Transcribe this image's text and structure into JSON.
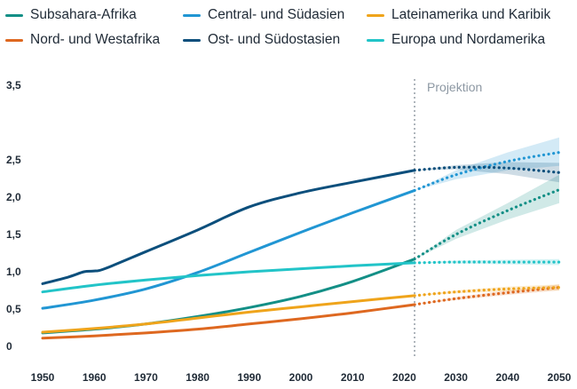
{
  "chart_data": {
    "type": "line",
    "title": "",
    "xlabel": "",
    "ylabel": "",
    "xlim": [
      1950,
      2050
    ],
    "ylim": [
      0,
      3.5
    ],
    "grid": false,
    "legend_position": "top",
    "projection_start": 2022,
    "projection_label": "Projektion",
    "x_ticks": [
      "1950",
      "1960",
      "1970",
      "1980",
      "1990",
      "2000",
      "2010",
      "2020",
      "2030",
      "2040",
      "2050"
    ],
    "y_ticks": [
      "0",
      "0,5",
      "1,0",
      "1,5",
      "2,0",
      "2,5",
      "3,5"
    ],
    "y_tick_values": [
      0,
      0.5,
      1.0,
      1.5,
      2.0,
      2.5,
      3.5
    ],
    "series": [
      {
        "name": "Subsahara-Afrika",
        "color": "#138f86",
        "x": [
          1950,
          1960,
          1970,
          1980,
          1990,
          2000,
          2010,
          2022
        ],
        "values": [
          0.18,
          0.23,
          0.3,
          0.4,
          0.52,
          0.67,
          0.87,
          1.17
        ],
        "projection_x": [
          2022,
          2030,
          2040,
          2050
        ],
        "projection_values": [
          1.17,
          1.5,
          1.82,
          2.1
        ],
        "band_lower": [
          1.17,
          1.44,
          1.7,
          1.92
        ],
        "band_upper": [
          1.17,
          1.56,
          1.92,
          2.3
        ]
      },
      {
        "name": "Nord- und Westafrika",
        "color": "#de6820",
        "x": [
          1950,
          1960,
          1970,
          1980,
          1990,
          2000,
          2010,
          2022
        ],
        "values": [
          0.11,
          0.14,
          0.18,
          0.23,
          0.3,
          0.37,
          0.45,
          0.56
        ],
        "projection_x": [
          2022,
          2030,
          2040,
          2050
        ],
        "projection_values": [
          0.56,
          0.64,
          0.72,
          0.79
        ],
        "band_lower": [
          0.56,
          0.62,
          0.69,
          0.75
        ],
        "band_upper": [
          0.56,
          0.66,
          0.75,
          0.83
        ]
      },
      {
        "name": "Central- und Südasien",
        "color": "#2196d3",
        "x": [
          1950,
          1960,
          1970,
          1980,
          1990,
          2000,
          2010,
          2022
        ],
        "values": [
          0.51,
          0.62,
          0.77,
          0.99,
          1.26,
          1.53,
          1.79,
          2.09
        ],
        "projection_x": [
          2022,
          2030,
          2040,
          2050
        ],
        "projection_values": [
          2.09,
          2.3,
          2.48,
          2.6
        ],
        "band_lower": [
          2.09,
          2.24,
          2.36,
          2.42
        ],
        "band_upper": [
          2.09,
          2.36,
          2.6,
          2.8
        ]
      },
      {
        "name": "Ost- und Südostasien",
        "color": "#0c4f7c",
        "x": [
          1950,
          1955,
          1958,
          1960,
          1962,
          1970,
          1980,
          1990,
          2000,
          2010,
          2022
        ],
        "values": [
          0.84,
          0.93,
          1.0,
          1.01,
          1.04,
          1.27,
          1.56,
          1.87,
          2.06,
          2.2,
          2.36
        ],
        "projection_x": [
          2022,
          2030,
          2040,
          2050
        ],
        "projection_values": [
          2.36,
          2.4,
          2.39,
          2.33
        ],
        "band_lower": [
          2.36,
          2.37,
          2.31,
          2.2
        ],
        "band_upper": [
          2.36,
          2.43,
          2.47,
          2.46
        ]
      },
      {
        "name": "Lateinamerika und Karibik",
        "color": "#efa41b",
        "x": [
          1950,
          1960,
          1970,
          1980,
          1990,
          2000,
          2010,
          2022
        ],
        "values": [
          0.19,
          0.24,
          0.3,
          0.38,
          0.46,
          0.53,
          0.6,
          0.68
        ],
        "projection_x": [
          2022,
          2030,
          2040,
          2050
        ],
        "projection_values": [
          0.68,
          0.73,
          0.77,
          0.79
        ],
        "band_lower": [
          0.68,
          0.71,
          0.74,
          0.75
        ],
        "band_upper": [
          0.68,
          0.75,
          0.8,
          0.83
        ]
      },
      {
        "name": "Europa und Nordamerika",
        "color": "#22c4c8",
        "x": [
          1950,
          1960,
          1970,
          1980,
          1990,
          2000,
          2010,
          2022
        ],
        "values": [
          0.73,
          0.82,
          0.89,
          0.95,
          1.0,
          1.04,
          1.08,
          1.12
        ],
        "projection_x": [
          2022,
          2030,
          2040,
          2050
        ],
        "projection_values": [
          1.12,
          1.13,
          1.13,
          1.13
        ],
        "band_lower": [
          1.12,
          1.11,
          1.1,
          1.09
        ],
        "band_upper": [
          1.12,
          1.15,
          1.16,
          1.17
        ]
      }
    ]
  }
}
